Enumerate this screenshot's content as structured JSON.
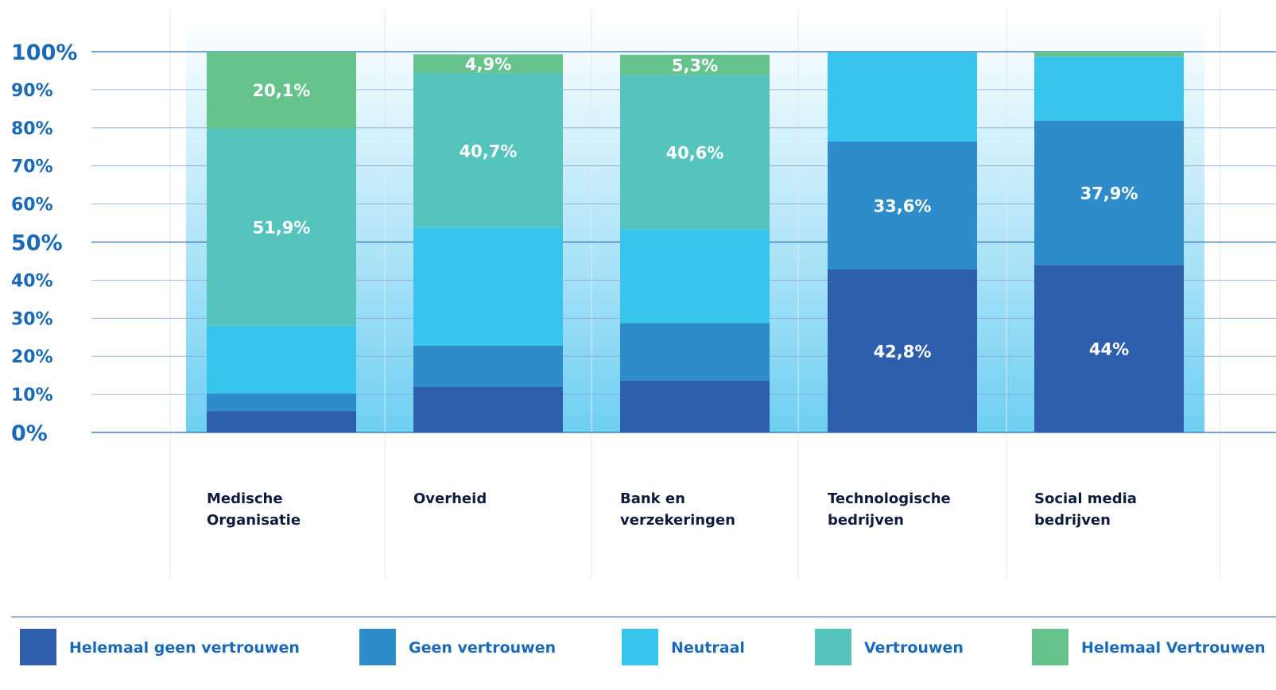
{
  "colors": {
    "helemaal_geen": "#2d5fad",
    "geen": "#2f8cca",
    "neutraal": "#37c5ee",
    "vertrouwen": "#55c4bd",
    "helemaal_vertrouwen": "#66c38b",
    "axis_text": "#1a6ab8",
    "category_text": "#0d1b3d",
    "legend_text": "#1a6ab8"
  },
  "chart_data": {
    "type": "bar",
    "stacked": true,
    "ylim": [
      0,
      100
    ],
    "yticks": [
      "0%",
      "10%",
      "20%",
      "30%",
      "40%",
      "50%",
      "60%",
      "70%",
      "80%",
      "90%",
      "100%"
    ],
    "categories": [
      [
        "Medische",
        "Organisatie"
      ],
      [
        "Overheid"
      ],
      [
        "Bank en",
        "verzekeringen"
      ],
      [
        "Technologische",
        "bedrijven"
      ],
      [
        "Social media",
        "bedrijven"
      ]
    ],
    "series": [
      {
        "name": "Helemaal geen vertrouwen",
        "color_key": "helemaal_geen",
        "values": [
          5.6,
          11.9,
          13.6,
          42.8,
          44.0
        ],
        "labels": [
          "",
          "",
          "",
          "42,8%",
          "44%"
        ]
      },
      {
        "name": "Geen vertrouwen",
        "color_key": "geen",
        "values": [
          4.6,
          10.9,
          15.1,
          33.6,
          37.9
        ],
        "labels": [
          "",
          "",
          "",
          "33,6%",
          "37,9%"
        ]
      },
      {
        "name": "Neutraal",
        "color_key": "neutraal",
        "values": [
          17.8,
          30.9,
          24.6,
          23.4,
          16.8
        ],
        "labels": [
          "",
          "",
          "",
          "",
          ""
        ]
      },
      {
        "name": "Vertrouwen",
        "color_key": "vertrouwen",
        "values": [
          51.9,
          40.7,
          40.6,
          0,
          0
        ],
        "labels": [
          "51,9%",
          "40,7%",
          "40,6%",
          "",
          ""
        ]
      },
      {
        "name": "Helemaal Vertrouwen",
        "color_key": "helemaal_vertrouwen",
        "values": [
          20.1,
          4.9,
          5.3,
          0,
          1.3
        ],
        "labels": [
          "20,1%",
          "4,9%",
          "5,3%",
          "",
          ""
        ]
      }
    ]
  }
}
